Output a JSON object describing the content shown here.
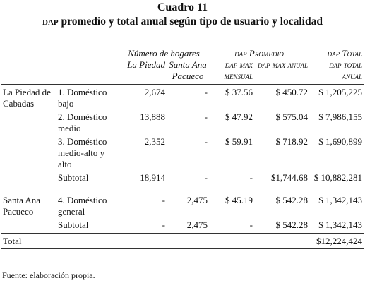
{
  "header": {
    "title": "Cuadro 11",
    "subtitle_abbr": "dap",
    "subtitle": "promedio y total anual según tipo de usuario y localidad"
  },
  "table": {
    "group_headers": [
      "Número de hogares",
      "dap Promedio",
      "dap Total"
    ],
    "column_headers": [
      "La Piedad",
      "Santa Ana Pacueco",
      "dap max mensual",
      "dap max anual",
      "dap total anual"
    ],
    "groups": [
      {
        "locality": "La Piedad de Cabadas",
        "rows": [
          [
            "1. Doméstico bajo",
            "2,674",
            "-",
            "$ 37.56",
            "$ 450.72",
            "$ 1,205,225"
          ],
          [
            "2. Doméstico medio",
            "13,888",
            "-",
            "$ 47.92",
            "$ 575.04",
            "$ 7,986,155"
          ],
          [
            "3. Doméstico medio-alto y alto",
            "2,352",
            "-",
            "$ 59.91",
            "$ 718.92",
            "$ 1,690,899"
          ],
          [
            "Subtotal",
            "18,914",
            "-",
            "-",
            "$1,744.68",
            "$ 10,882,281"
          ]
        ]
      },
      {
        "locality": "Santa Ana Pacueco",
        "rows": [
          [
            "4. Doméstico general",
            "-",
            "2,475",
            "$ 45.19",
            "$ 542.28",
            "$ 1,342,143"
          ],
          [
            "Subtotal",
            "-",
            "2,475",
            "-",
            "$ 542.28",
            "$ 1,342,143"
          ]
        ]
      }
    ],
    "total": {
      "label": "Total",
      "value": "$12,224,424"
    }
  },
  "footer": {
    "source": "Fuente: elaboración propia."
  }
}
